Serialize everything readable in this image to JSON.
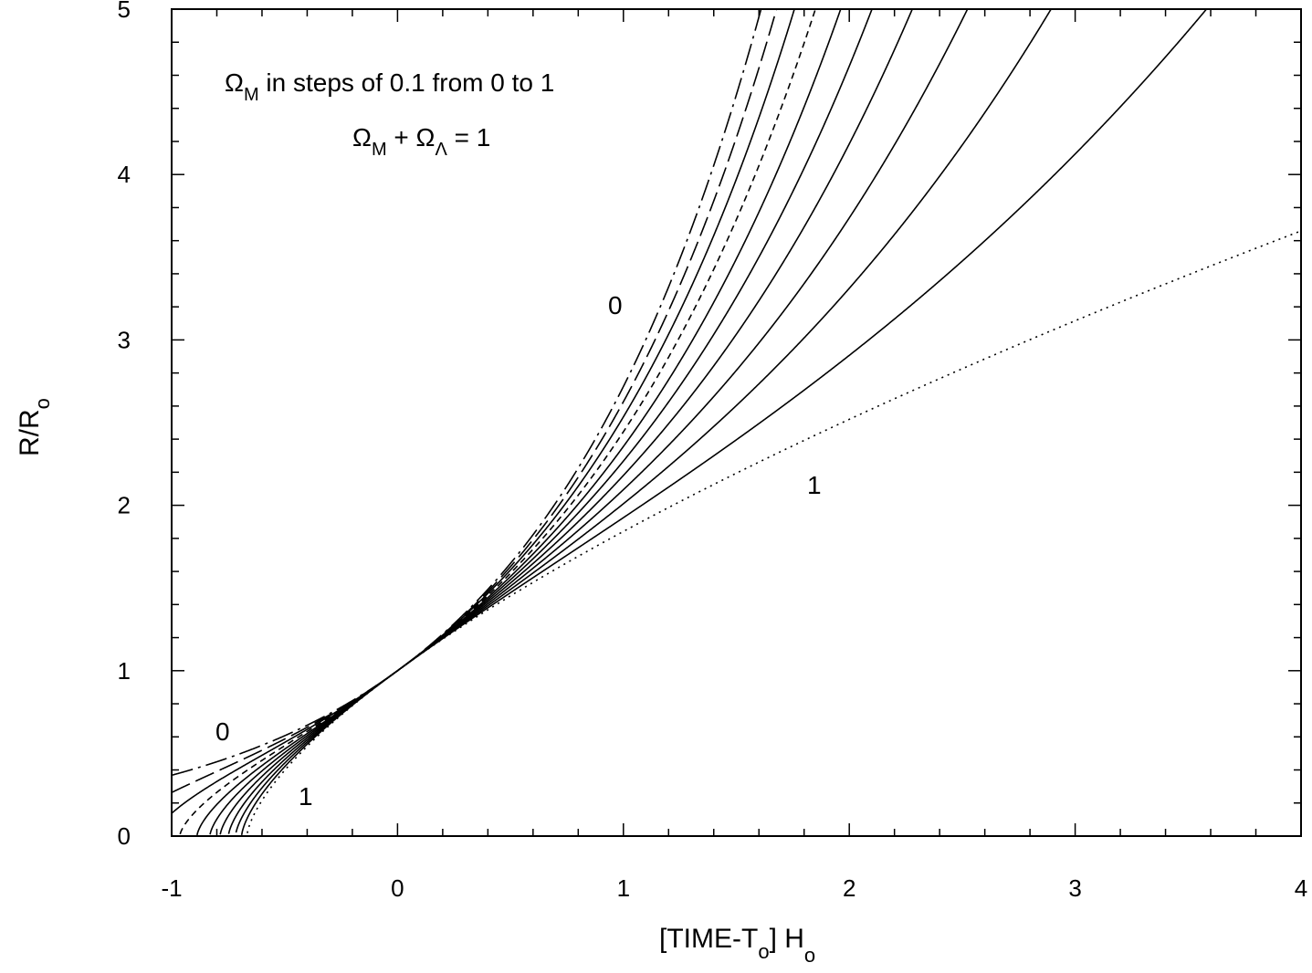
{
  "chart_data": {
    "type": "line",
    "xlabel": {
      "main": "[TIME-T",
      "sub": "o",
      "tail": "] H",
      "sub2": "o"
    },
    "ylabel": {
      "main": "R/R",
      "sub": "o"
    },
    "xlim": [
      -1,
      4
    ],
    "ylim": [
      0,
      5
    ],
    "x_ticks": [
      "-1",
      "0",
      "1",
      "2",
      "3",
      "4"
    ],
    "y_ticks": [
      "0",
      "1",
      "2",
      "3",
      "4",
      "5"
    ],
    "grid": false,
    "annotations": {
      "line1": {
        "sym": "Ω",
        "sub": "M",
        "text": " in steps of 0.1 from 0 to 1"
      },
      "line2": {
        "sym1": "Ω",
        "sub1": "M",
        "mid": " + ",
        "sym2": "Ω",
        "sub2": "Λ",
        "tail": " = 1"
      },
      "label_0_future": "0",
      "label_1_future": "1",
      "label_0_past": "0",
      "label_1_past": "1"
    },
    "series": [
      {
        "omega_m": 0.0,
        "dash": "long-dash-dot"
      },
      {
        "omega_m": 0.1,
        "dash": "long-dash"
      },
      {
        "omega_m": 0.2,
        "dash": "solid"
      },
      {
        "omega_m": 0.3,
        "dash": "short-dash"
      },
      {
        "omega_m": 0.4,
        "dash": "solid"
      },
      {
        "omega_m": 0.5,
        "dash": "solid"
      },
      {
        "omega_m": 0.6,
        "dash": "solid"
      },
      {
        "omega_m": 0.7,
        "dash": "solid"
      },
      {
        "omega_m": 0.8,
        "dash": "solid"
      },
      {
        "omega_m": 0.9,
        "dash": "solid"
      },
      {
        "omega_m": 1.0,
        "dash": "dotted"
      }
    ]
  }
}
